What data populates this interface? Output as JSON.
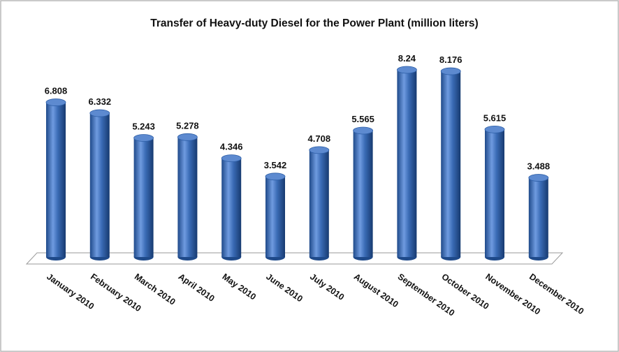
{
  "chart_data": {
    "type": "bar",
    "title": "Transfer of Heavy-duty Diesel for the Power Plant  (million liters)",
    "categories": [
      "January 2010",
      "February 2010",
      "March 2010",
      "April 2010",
      "May 2010",
      "June 2010",
      "July 2010",
      "August 2010",
      "September 2010",
      "October 2010",
      "November 2010",
      "December 2010"
    ],
    "values": [
      6.808,
      6.332,
      5.243,
      5.278,
      4.346,
      3.542,
      4.708,
      5.565,
      8.24,
      8.176,
      5.615,
      3.488
    ],
    "color": "#3a6bb5"
  }
}
